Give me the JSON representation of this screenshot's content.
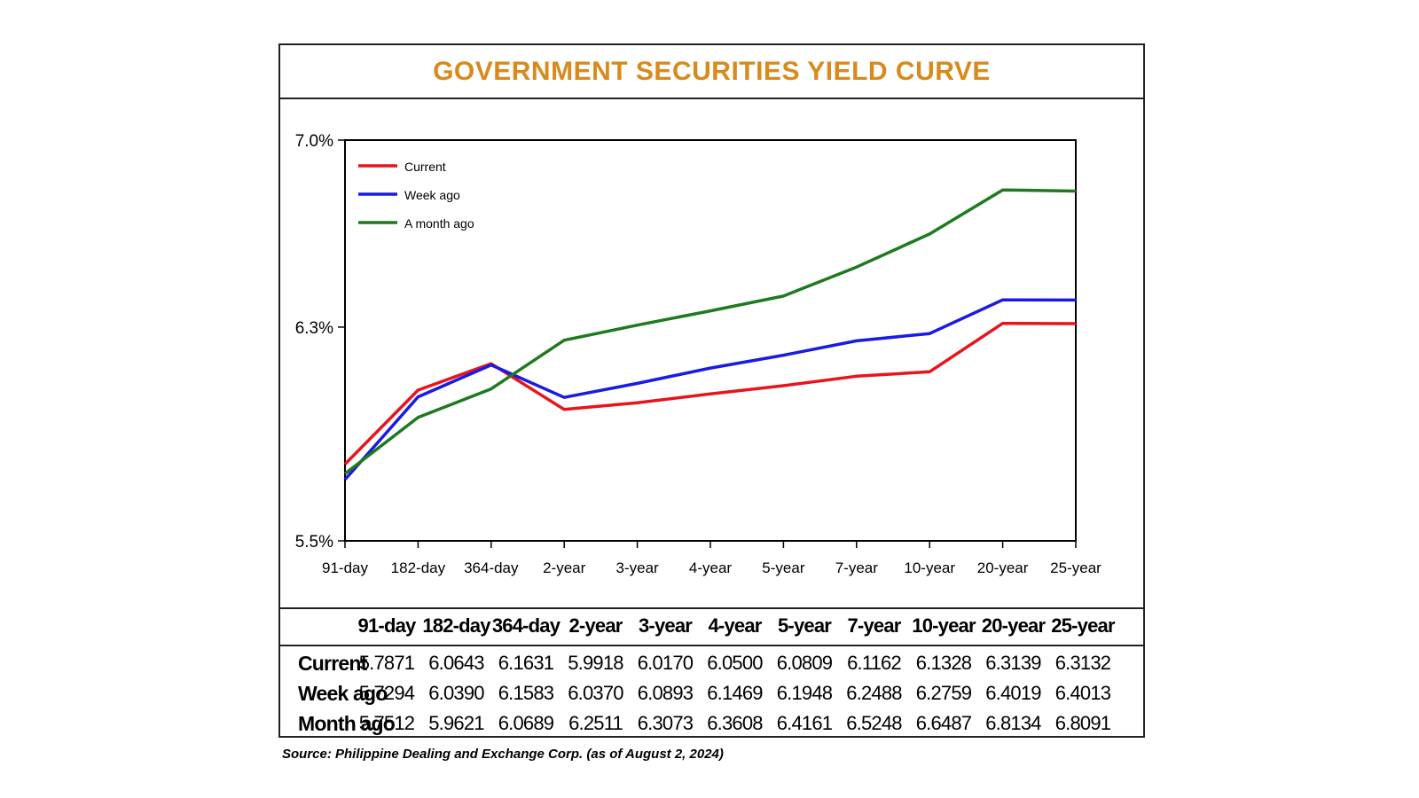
{
  "colors": {
    "title": "#d98a1c",
    "axis": "#000000",
    "series": [
      "#e8141c",
      "#1a1ae6",
      "#1e7a1e"
    ]
  },
  "chart_data": {
    "type": "line",
    "title": "GOVERNMENT SECURITIES YIELD CURVE",
    "categories": [
      "91-day",
      "182-day",
      "364-day",
      "2-year",
      "3-year",
      "4-year",
      "5-year",
      "7-year",
      "10-year",
      "20-year",
      "25-year"
    ],
    "y_ticks": [
      5.5,
      6.3,
      7.0
    ],
    "y_tick_labels": [
      "5.5%",
      "6.3%",
      "7.0%"
    ],
    "ylim": [
      5.5,
      7.0
    ],
    "xlabel": "",
    "ylabel": "",
    "legend_position": "top-left",
    "series": [
      {
        "name": "Current",
        "values": [
          5.7871,
          6.0643,
          6.1631,
          5.9918,
          6.017,
          6.05,
          6.0809,
          6.1162,
          6.1328,
          6.3139,
          6.3132
        ]
      },
      {
        "name": "Week ago",
        "values": [
          5.7294,
          6.039,
          6.1583,
          6.037,
          6.0893,
          6.1469,
          6.1948,
          6.2488,
          6.2759,
          6.4019,
          6.4013
        ]
      },
      {
        "name": "A month ago",
        "values": [
          5.7512,
          5.9621,
          6.0689,
          6.2511,
          6.3073,
          6.3608,
          6.4161,
          6.5248,
          6.6487,
          6.8134,
          6.8091
        ]
      }
    ]
  },
  "table": {
    "headers": [
      "91-day",
      "182-day",
      "364-day",
      "2-year",
      "3-year",
      "4-year",
      "5-year",
      "7-year",
      "10-year",
      "20-year",
      "25-year"
    ],
    "rows": [
      {
        "label": "Current",
        "values": [
          "5.7871",
          "6.0643",
          "6.1631",
          "5.9918",
          "6.0170",
          "6.0500",
          "6.0809",
          "6.1162",
          "6.1328",
          "6.3139",
          "6.3132"
        ]
      },
      {
        "label": "Week ago",
        "values": [
          "5.7294",
          "6.0390",
          "6.1583",
          "6.0370",
          "6.0893",
          "6.1469",
          "6.1948",
          "6.2488",
          "6.2759",
          "6.4019",
          "6.4013"
        ]
      },
      {
        "label": "Month ago",
        "values": [
          "5.7512",
          "5.9621",
          "6.0689",
          "6.2511",
          "6.3073",
          "6.3608",
          "6.4161",
          "6.5248",
          "6.6487",
          "6.8134",
          "6.8091"
        ]
      }
    ]
  },
  "source": "Source: Philippine Dealing and Exchange Corp. (as of August 2, 2024)"
}
